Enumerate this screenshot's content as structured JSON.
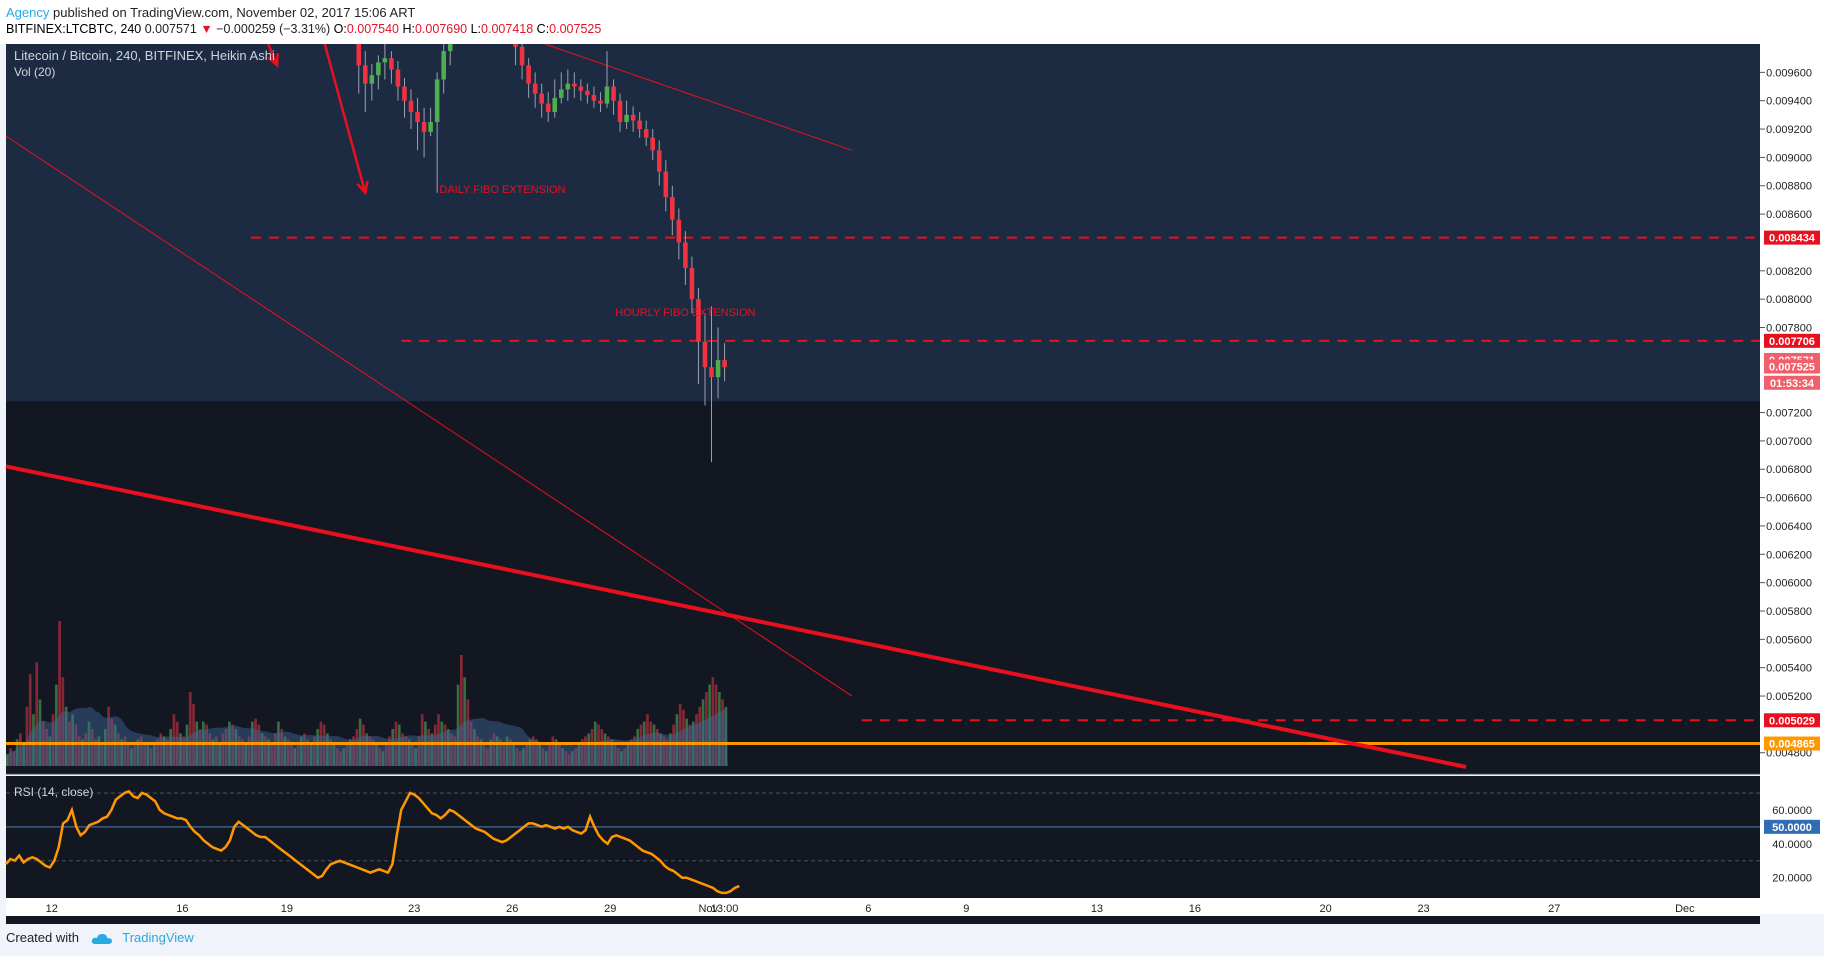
{
  "header": {
    "author": "Agency",
    "published_text": "published on TradingView.com, November 02, 2017 15:06 ART",
    "symbol": "BITFINEX:LTCBTC, 240",
    "last": "0.007571",
    "change_arrow": "▼",
    "change": "−0.000259 (−3.31%)",
    "o_label": "O:",
    "o_val": "0.007540",
    "h_label": "H:",
    "h_val": "0.007690",
    "l_label": "L:",
    "l_val": "0.007418",
    "c_label": "C:",
    "c_val": "0.007525"
  },
  "legend": {
    "title": "Litecoin / Bitcoin, 240, BITFINEX, Heikin Ashi",
    "vol": "Vol (20)",
    "rsi": "RSI (14, close)"
  },
  "footer": {
    "created": "Created with",
    "brand": "TradingView"
  },
  "colors": {
    "up": "#4caf50",
    "down": "#ef3340",
    "accent_red": "#e8101e",
    "orange": "#ff9800",
    "rsi_line": "#ff9800"
  },
  "chart_data": [
    {
      "type": "candlestick",
      "title": "Litecoin / Bitcoin, 240, BITFINEX, Heikin Ashi",
      "yaxis": {
        "range": [
          0.00465,
          0.0098
        ],
        "ticks": [
          "0.009600",
          "0.009400",
          "0.009200",
          "0.009000",
          "0.008800",
          "0.008600",
          "0.008200",
          "0.008000",
          "0.007800",
          "0.007200",
          "0.007000",
          "0.006800",
          "0.006600",
          "0.006400",
          "0.006200",
          "0.006000",
          "0.005800",
          "0.005600",
          "0.005400",
          "0.005200",
          "0.004800"
        ]
      },
      "xaxis": {
        "ticks": [
          {
            "label": "12",
            "t": 11.5
          },
          {
            "label": "16",
            "t": 15.5
          },
          {
            "label": "19",
            "t": 18.7
          },
          {
            "label": "23",
            "t": 22.6
          },
          {
            "label": "26",
            "t": 25.6
          },
          {
            "label": "29",
            "t": 28.6
          },
          {
            "label": "Nov",
            "t": 31.6
          },
          {
            "label": "13:00",
            "t": 32.1
          },
          {
            "label": "6",
            "t": 36.5
          },
          {
            "label": "9",
            "t": 39.5
          },
          {
            "label": "13",
            "t": 43.5
          },
          {
            "label": "16",
            "t": 46.5
          },
          {
            "label": "20",
            "t": 50.5
          },
          {
            "label": "23",
            "t": 53.5
          },
          {
            "label": "27",
            "t": 57.5
          },
          {
            "label": "Dec",
            "t": 61.5
          }
        ],
        "range": [
          10.1,
          63.8
        ]
      },
      "price_tags": [
        {
          "label": "0.008434",
          "value": 0.008434
        },
        {
          "label": "0.007706",
          "value": 0.007706
        },
        {
          "label": "0.007571",
          "value": 0.007571
        },
        {
          "label": "0.007525",
          "value": 0.007525
        },
        {
          "label": "01:53:34",
          "value": 0.00741
        },
        {
          "label": "0.005029",
          "value": 0.005029
        },
        {
          "label": "0.004865",
          "value": 0.004865
        }
      ],
      "horizontal_lines": [
        {
          "value": 0.008434,
          "from_t": 17.6,
          "style": "dashed"
        },
        {
          "value": 0.007706,
          "from_t": 22.2,
          "style": "dashed"
        },
        {
          "value": 0.005029,
          "from_t": 36.3,
          "style": "dashed"
        },
        {
          "value": 0.004865,
          "from_t": 10.1,
          "style": "solid-orange"
        }
      ],
      "annotations": [
        {
          "text": "DAILY FIBO EXTENSION",
          "t": 25.3,
          "value": 0.00875
        },
        {
          "text": "HOURLY FIBO EXTENSION",
          "t": 30.9,
          "value": 0.00788
        }
      ],
      "highlight_zone": {
        "from": 0.00728,
        "to": 0.0098
      },
      "candles_segment": [
        {
          "t": 20.9,
          "o": 0.00983,
          "c": 0.00965,
          "h": 0.00985,
          "l": 0.00945
        },
        {
          "t": 21.1,
          "o": 0.00965,
          "c": 0.00952,
          "h": 0.00975,
          "l": 0.00932
        },
        {
          "t": 21.3,
          "o": 0.00952,
          "c": 0.00958,
          "h": 0.00966,
          "l": 0.0094
        },
        {
          "t": 21.5,
          "o": 0.00958,
          "c": 0.00967,
          "h": 0.00972,
          "l": 0.00948
        },
        {
          "t": 21.7,
          "o": 0.00967,
          "c": 0.0097,
          "h": 0.0098,
          "l": 0.00955
        },
        {
          "t": 21.9,
          "o": 0.0097,
          "c": 0.00962,
          "h": 0.00975,
          "l": 0.00952
        },
        {
          "t": 22.1,
          "o": 0.00962,
          "c": 0.0095,
          "h": 0.00968,
          "l": 0.0094
        },
        {
          "t": 22.3,
          "o": 0.0095,
          "c": 0.0094,
          "h": 0.00956,
          "l": 0.00928
        },
        {
          "t": 22.5,
          "o": 0.0094,
          "c": 0.00932,
          "h": 0.00948,
          "l": 0.0092
        },
        {
          "t": 22.7,
          "o": 0.00932,
          "c": 0.00925,
          "h": 0.00942,
          "l": 0.00905
        },
        {
          "t": 22.9,
          "o": 0.00925,
          "c": 0.00918,
          "h": 0.00935,
          "l": 0.009
        },
        {
          "t": 23.1,
          "o": 0.00918,
          "c": 0.00925,
          "h": 0.00935,
          "l": 0.00915
        },
        {
          "t": 23.3,
          "o": 0.00925,
          "c": 0.00955,
          "h": 0.0096,
          "l": 0.00875
        },
        {
          "t": 23.5,
          "o": 0.00955,
          "c": 0.00975,
          "h": 0.00985,
          "l": 0.00945
        },
        {
          "t": 23.7,
          "o": 0.00975,
          "c": 0.0099,
          "h": 0.00995,
          "l": 0.00965
        },
        {
          "t": 25.7,
          "o": 0.0099,
          "c": 0.00978,
          "h": 0.00995,
          "l": 0.00965
        },
        {
          "t": 25.9,
          "o": 0.00978,
          "c": 0.00965,
          "h": 0.00985,
          "l": 0.00955
        },
        {
          "t": 26.1,
          "o": 0.00965,
          "c": 0.00952,
          "h": 0.0097,
          "l": 0.00942
        },
        {
          "t": 26.3,
          "o": 0.00952,
          "c": 0.00945,
          "h": 0.0096,
          "l": 0.00935
        },
        {
          "t": 26.5,
          "o": 0.00945,
          "c": 0.00938,
          "h": 0.00952,
          "l": 0.00928
        },
        {
          "t": 26.7,
          "o": 0.00938,
          "c": 0.00932,
          "h": 0.00946,
          "l": 0.00925
        },
        {
          "t": 26.9,
          "o": 0.00932,
          "c": 0.00942,
          "h": 0.00955,
          "l": 0.00928
        },
        {
          "t": 27.1,
          "o": 0.00942,
          "c": 0.00948,
          "h": 0.0096,
          "l": 0.00938
        },
        {
          "t": 27.3,
          "o": 0.00948,
          "c": 0.00952,
          "h": 0.00962,
          "l": 0.0094
        },
        {
          "t": 27.5,
          "o": 0.00952,
          "c": 0.0095,
          "h": 0.0096,
          "l": 0.00942
        },
        {
          "t": 27.7,
          "o": 0.0095,
          "c": 0.00947,
          "h": 0.00955,
          "l": 0.0094
        },
        {
          "t": 27.9,
          "o": 0.00947,
          "c": 0.00944,
          "h": 0.00952,
          "l": 0.00938
        },
        {
          "t": 28.1,
          "o": 0.00944,
          "c": 0.0094,
          "h": 0.0095,
          "l": 0.00935
        },
        {
          "t": 28.3,
          "o": 0.0094,
          "c": 0.00938,
          "h": 0.00946,
          "l": 0.00932
        },
        {
          "t": 28.5,
          "o": 0.00938,
          "c": 0.0095,
          "h": 0.00975,
          "l": 0.00935
        },
        {
          "t": 28.7,
          "o": 0.0095,
          "c": 0.0094,
          "h": 0.00955,
          "l": 0.0093
        },
        {
          "t": 28.9,
          "o": 0.0094,
          "c": 0.00925,
          "h": 0.00945,
          "l": 0.00918
        },
        {
          "t": 29.1,
          "o": 0.00925,
          "c": 0.0093,
          "h": 0.0094,
          "l": 0.0092
        },
        {
          "t": 29.3,
          "o": 0.0093,
          "c": 0.00926,
          "h": 0.00936,
          "l": 0.00918
        },
        {
          "t": 29.5,
          "o": 0.00926,
          "c": 0.0092,
          "h": 0.00932,
          "l": 0.00914
        },
        {
          "t": 29.7,
          "o": 0.0092,
          "c": 0.00914,
          "h": 0.00926,
          "l": 0.00908
        },
        {
          "t": 29.9,
          "o": 0.00914,
          "c": 0.00905,
          "h": 0.0092,
          "l": 0.00898
        },
        {
          "t": 30.1,
          "o": 0.00905,
          "c": 0.0089,
          "h": 0.00912,
          "l": 0.0088
        },
        {
          "t": 30.3,
          "o": 0.0089,
          "c": 0.00872,
          "h": 0.00898,
          "l": 0.00862
        },
        {
          "t": 30.5,
          "o": 0.00872,
          "c": 0.00856,
          "h": 0.0088,
          "l": 0.00845
        },
        {
          "t": 30.7,
          "o": 0.00856,
          "c": 0.0084,
          "h": 0.00864,
          "l": 0.00828
        },
        {
          "t": 30.9,
          "o": 0.0084,
          "c": 0.00822,
          "h": 0.00848,
          "l": 0.0081
        },
        {
          "t": 31.1,
          "o": 0.00822,
          "c": 0.008,
          "h": 0.0083,
          "l": 0.0079
        },
        {
          "t": 31.3,
          "o": 0.008,
          "c": 0.0077,
          "h": 0.00808,
          "l": 0.0074
        },
        {
          "t": 31.5,
          "o": 0.0077,
          "c": 0.00752,
          "h": 0.0079,
          "l": 0.00725
        },
        {
          "t": 31.7,
          "o": 0.00752,
          "c": 0.00745,
          "h": 0.00795,
          "l": 0.00685
        },
        {
          "t": 31.9,
          "o": 0.00745,
          "c": 0.00757,
          "h": 0.0078,
          "l": 0.0073
        },
        {
          "t": 32.1,
          "o": 0.00757,
          "c": 0.00752,
          "h": 0.00769,
          "l": 0.00742
        }
      ],
      "trendlines": [
        {
          "t1": 10.1,
          "v1": 0.00915,
          "t2": 36.0,
          "v2": 0.0052,
          "width": 1
        },
        {
          "t1": 10.1,
          "v1": 0.00682,
          "t2": 54.8,
          "v2": 0.0047,
          "width": 4
        },
        {
          "t1": 26.6,
          "v1": 0.0098,
          "t2": 36.0,
          "v2": 0.00905,
          "width": 1
        }
      ],
      "arrows": [
        {
          "t1": 18.0,
          "v1": 0.00987,
          "t2": 18.4,
          "v2": 0.00965
        },
        {
          "t1": 19.8,
          "v1": 0.00985,
          "t2": 21.1,
          "v2": 0.00875
        }
      ]
    },
    {
      "type": "bar",
      "title": "Vol (20)",
      "note": "volume histogram, heights relative (0-1) with MA overlay",
      "series": [
        {
          "name": "Vol (20)",
          "values": [
            0.08,
            0.12,
            0.1,
            0.18,
            0.22,
            0.15,
            0.4,
            0.62,
            0.35,
            0.7,
            0.45,
            0.3,
            0.25,
            0.2,
            0.35,
            0.55,
            0.98,
            0.6,
            0.4,
            0.3,
            0.35,
            0.28,
            0.2,
            0.18,
            0.22,
            0.3,
            0.25,
            0.18,
            0.2,
            0.15,
            0.25,
            0.4,
            0.32,
            0.28,
            0.22,
            0.18,
            0.2,
            0.15,
            0.12,
            0.14,
            0.18,
            0.2,
            0.15,
            0.14,
            0.12,
            0.16,
            0.18,
            0.22,
            0.2,
            0.18,
            0.25,
            0.35,
            0.3,
            0.22,
            0.2,
            0.28,
            0.5,
            0.42,
            0.3,
            0.25,
            0.3,
            0.28,
            0.22,
            0.18,
            0.2,
            0.15,
            0.22,
            0.25,
            0.3,
            0.28,
            0.25,
            0.2,
            0.18,
            0.15,
            0.2,
            0.3,
            0.32,
            0.28,
            0.22,
            0.2,
            0.18,
            0.15,
            0.22,
            0.3,
            0.25,
            0.2,
            0.18,
            0.15,
            0.12,
            0.15,
            0.2,
            0.22,
            0.18,
            0.15,
            0.2,
            0.25,
            0.3,
            0.28,
            0.22,
            0.18,
            0.15,
            0.12,
            0.1,
            0.12,
            0.15,
            0.18,
            0.2,
            0.25,
            0.32,
            0.28,
            0.22,
            0.2,
            0.18,
            0.15,
            0.12,
            0.1,
            0.15,
            0.2,
            0.25,
            0.3,
            0.28,
            0.22,
            0.2,
            0.18,
            0.15,
            0.12,
            0.2,
            0.35,
            0.3,
            0.25,
            0.22,
            0.28,
            0.35,
            0.3,
            0.28,
            0.25,
            0.22,
            0.2,
            0.55,
            0.75,
            0.6,
            0.45,
            0.3,
            0.25,
            0.2,
            0.18,
            0.15,
            0.12,
            0.18,
            0.22,
            0.2,
            0.18,
            0.15,
            0.2,
            0.18,
            0.15,
            0.12,
            0.1,
            0.12,
            0.15,
            0.18,
            0.2,
            0.18,
            0.15,
            0.12,
            0.1,
            0.15,
            0.2,
            0.18,
            0.15,
            0.12,
            0.1,
            0.08,
            0.1,
            0.12,
            0.15,
            0.18,
            0.2,
            0.22,
            0.25,
            0.3,
            0.28,
            0.25,
            0.22,
            0.2,
            0.18,
            0.15,
            0.12,
            0.1,
            0.12,
            0.15,
            0.18,
            0.2,
            0.25,
            0.28,
            0.3,
            0.35,
            0.3,
            0.28,
            0.25,
            0.22,
            0.2,
            0.18,
            0.22,
            0.28,
            0.35,
            0.42,
            0.38,
            0.32,
            0.28,
            0.3,
            0.35,
            0.4,
            0.45,
            0.5,
            0.55,
            0.6,
            0.55,
            0.5,
            0.45,
            0.4
          ]
        }
      ]
    },
    {
      "type": "line",
      "title": "RSI (14, close)",
      "yaxis": {
        "range": [
          8,
          80
        ],
        "ticks": [
          "60.0000",
          "40.0000",
          "20.0000"
        ]
      },
      "price_tags": [
        {
          "label": "50.0000",
          "value": 50
        }
      ],
      "guides": [
        70,
        50,
        30
      ],
      "x_range": [
        10.1,
        32.55
      ],
      "series": [
        {
          "name": "RSI (14, close)",
          "values": [
            28,
            31,
            30,
            33,
            29,
            31,
            32,
            31,
            29,
            27,
            26,
            30,
            38,
            52,
            54,
            60,
            50,
            45,
            47,
            51,
            52,
            53,
            55,
            56,
            60,
            66,
            68,
            70,
            71,
            68,
            67,
            70,
            69,
            67,
            65,
            60,
            58,
            57,
            56,
            55,
            55,
            54,
            50,
            47,
            45,
            42,
            40,
            38,
            37,
            36,
            38,
            42,
            50,
            53,
            51,
            49,
            47,
            45,
            44,
            44,
            42,
            40,
            38,
            36,
            34,
            32,
            30,
            28,
            26,
            24,
            22,
            20,
            21,
            25,
            28,
            29,
            30,
            29,
            28,
            27,
            26,
            25,
            24,
            23,
            24,
            25,
            24,
            23,
            28,
            45,
            60,
            65,
            70,
            69,
            67,
            64,
            61,
            58,
            57,
            55,
            57,
            60,
            59,
            57,
            55,
            53,
            51,
            49,
            48,
            47,
            45,
            43,
            42,
            41,
            42,
            44,
            46,
            48,
            50,
            52,
            52,
            51,
            50,
            51,
            50,
            49,
            50,
            49,
            50,
            48,
            47,
            46,
            48,
            56,
            50,
            45,
            42,
            40,
            44,
            45,
            44,
            43,
            42,
            40,
            38,
            36,
            35,
            34,
            32,
            30,
            27,
            25,
            24,
            22,
            20,
            20,
            19,
            18,
            17,
            16,
            15,
            14,
            12,
            11,
            11,
            12,
            14,
            15
          ]
        }
      ]
    }
  ]
}
